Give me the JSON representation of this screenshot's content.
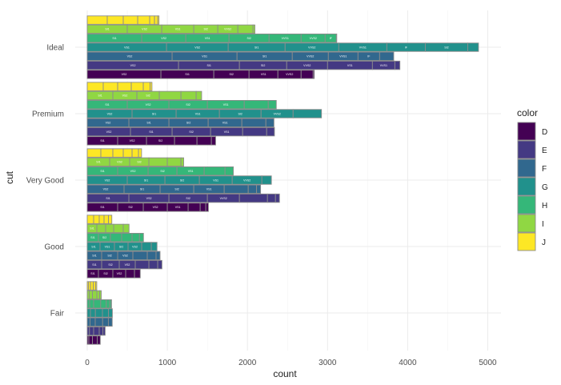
{
  "chart_data": {
    "type": "bar",
    "orientation": "horizontal",
    "position": "dodge",
    "xlabel": "count",
    "ylabel": "cut",
    "xlim": [
      0,
      5150
    ],
    "x_ticks": [
      0,
      1000,
      2000,
      3000,
      4000,
      5000
    ],
    "grid": true,
    "categories": [
      "Fair",
      "Good",
      "Very Good",
      "Premium",
      "Ideal"
    ],
    "legend": {
      "title": "color",
      "placement": "right",
      "entries": [
        "D",
        "E",
        "F",
        "G",
        "H",
        "I",
        "J"
      ],
      "colors": [
        "#440154",
        "#443983",
        "#31688e",
        "#21918c",
        "#35b779",
        "#90d743",
        "#fde725"
      ]
    },
    "series": [
      {
        "name": "D",
        "values": [
          163,
          662,
          1513,
          1603,
          2834
        ]
      },
      {
        "name": "E",
        "values": [
          224,
          933,
          2400,
          2337,
          3903
        ]
      },
      {
        "name": "F",
        "values": [
          312,
          909,
          2164,
          2331,
          3826
        ]
      },
      {
        "name": "G",
        "values": [
          314,
          871,
          2299,
          2924,
          4884
        ]
      },
      {
        "name": "H",
        "values": [
          303,
          702,
          1824,
          2360,
          3115
        ]
      },
      {
        "name": "I",
        "values": [
          175,
          522,
          1204,
          1428,
          2093
        ]
      },
      {
        "name": "J",
        "values": [
          119,
          307,
          678,
          808,
          896
        ]
      }
    ],
    "segments": [
      [
        [
          20,
          45,
          60,
          38
        ],
        [
          28,
          52,
          70,
          46,
          28
        ],
        [
          35,
          65,
          92,
          72,
          48
        ],
        [
          40,
          62,
          88,
          76,
          48
        ],
        [
          30,
          50,
          88,
          70,
          42,
          22
        ],
        [
          25,
          40,
          55,
          35,
          20
        ],
        [
          16,
          25,
          35,
          28,
          15
        ]
      ],
      [
        [
          {
            "v": 140,
            "t": "SI1"
          },
          {
            "v": 180,
            "t": "SI2"
          },
          {
            "v": 160,
            "t": "VS2"
          },
          110,
          72
        ],
        [
          {
            "v": 180,
            "t": "SI1"
          },
          {
            "v": 220,
            "t": "SI2"
          },
          {
            "v": 200,
            "t": "VS2"
          },
          170,
          110,
          53
        ],
        [
          {
            "v": 180,
            "t": "SI1"
          },
          {
            "v": 200,
            "t": "SI2"
          },
          {
            "v": 190,
            "t": "VS2"
          },
          180,
          109,
          50
        ],
        [
          {
            "v": 160,
            "t": "SI1"
          },
          {
            "v": 180,
            "t": "VS1"
          },
          {
            "v": 170,
            "t": "SI2"
          },
          {
            "v": 170,
            "t": "VS2"
          },
          120,
          71
        ],
        [
          {
            "v": 140,
            "t": "SI1"
          },
          {
            "v": 150,
            "t": "SI2"
          },
          140,
          130,
          92,
          50
        ],
        [
          {
            "v": 120,
            "t": "SI1"
          },
          110,
          100,
          120,
          72
        ],
        [
          80,
          70,
          60,
          55,
          42
        ]
      ],
      [
        [
          {
            "v": 380,
            "t": "SI1"
          },
          {
            "v": 320,
            "t": "SI2"
          },
          {
            "v": 300,
            "t": "VS2"
          },
          {
            "v": 260,
            "t": "VS1"
          },
          150,
          70,
          33
        ],
        [
          {
            "v": 520,
            "t": "SI1"
          },
          {
            "v": 500,
            "t": "VS2"
          },
          {
            "v": 480,
            "t": "SI2"
          },
          {
            "v": 400,
            "t": "VVS2"
          },
          350,
          100,
          50
        ],
        [
          {
            "v": 460,
            "t": "VS2"
          },
          {
            "v": 450,
            "t": "SI1"
          },
          {
            "v": 420,
            "t": "SI2"
          },
          {
            "v": 380,
            "t": "VS1"
          },
          300,
          104,
          50
        ],
        [
          {
            "v": 500,
            "t": "VS2"
          },
          {
            "v": 470,
            "t": "SI1"
          },
          {
            "v": 430,
            "t": "SI2"
          },
          {
            "v": 410,
            "t": "VS1"
          },
          {
            "v": 370,
            "t": "VVS2"
          },
          119
        ],
        [
          {
            "v": 380,
            "t": "SI1"
          },
          {
            "v": 380,
            "t": "VS2"
          },
          {
            "v": 360,
            "t": "SI2"
          },
          {
            "v": 340,
            "t": "VS1"
          },
          260,
          104
        ],
        [
          {
            "v": 280,
            "t": "SI1"
          },
          {
            "v": 250,
            "t": "VS2"
          },
          {
            "v": 240,
            "t": "SI2"
          },
          230,
          170,
          34
        ],
        [
          170,
          150,
          130,
          110,
          80,
          38
        ]
      ],
      [
        [
          {
            "v": 380,
            "t": "SI1"
          },
          {
            "v": 360,
            "t": "VS2"
          },
          {
            "v": 350,
            "t": "SI2"
          },
          280,
          180,
          53
        ],
        [
          {
            "v": 540,
            "t": "VS2"
          },
          {
            "v": 520,
            "t": "SI1"
          },
          {
            "v": 480,
            "t": "SI2"
          },
          {
            "v": 400,
            "t": "VS1"
          },
          300,
          97
        ],
        [
          {
            "v": 520,
            "t": "VS2"
          },
          {
            "v": 500,
            "t": "SI1"
          },
          {
            "v": 490,
            "t": "SI2"
          },
          {
            "v": 420,
            "t": "VS1"
          },
          300,
          101
        ],
        [
          {
            "v": 560,
            "t": "VS2"
          },
          {
            "v": 550,
            "t": "SI1"
          },
          {
            "v": 540,
            "t": "VS1"
          },
          {
            "v": 520,
            "t": "SI2"
          },
          {
            "v": 400,
            "t": "VVS2"
          },
          354
        ],
        [
          {
            "v": 500,
            "t": "SI1"
          },
          {
            "v": 520,
            "t": "VS2"
          },
          {
            "v": 480,
            "t": "SI2"
          },
          {
            "v": 460,
            "t": "VS1"
          },
          300,
          100
        ],
        [
          {
            "v": 320,
            "t": "SI1"
          },
          {
            "v": 300,
            "t": "VS2"
          },
          {
            "v": 280,
            "t": "SI2"
          },
          270,
          190,
          68
        ],
        [
          200,
          180,
          170,
          150,
          85,
          23
        ]
      ],
      [
        [
          {
            "v": 920,
            "t": "VS2"
          },
          {
            "v": 660,
            "t": "SI1"
          },
          {
            "v": 440,
            "t": "SI2"
          },
          {
            "v": 360,
            "t": "VS1"
          },
          {
            "v": 290,
            "t": "VVS2"
          },
          150,
          14
        ],
        [
          {
            "v": 1140,
            "t": "VS2"
          },
          {
            "v": 760,
            "t": "SI1"
          },
          {
            "v": 590,
            "t": "SI2"
          },
          {
            "v": 510,
            "t": "VVS2"
          },
          {
            "v": 560,
            "t": "VS1"
          },
          {
            "v": 280,
            "t": "VVS1"
          },
          63
        ],
        [
          {
            "v": 1060,
            "t": "VS2"
          },
          {
            "v": 810,
            "t": "VS1"
          },
          {
            "v": 690,
            "t": "SI1"
          },
          {
            "v": 450,
            "t": "VVS2"
          },
          {
            "v": 370,
            "t": "VVS1"
          },
          {
            "v": 270,
            "t": "IF"
          },
          176
        ],
        [
          {
            "v": 990,
            "t": "VS1"
          },
          {
            "v": 770,
            "t": "VS2"
          },
          {
            "v": 710,
            "t": "SI1"
          },
          {
            "v": 670,
            "t": "VVS2"
          },
          {
            "v": 600,
            "t": "VVS1"
          },
          {
            "v": 480,
            "t": "IF"
          },
          {
            "v": 530,
            "t": "SI2"
          },
          134
        ],
        [
          {
            "v": 680,
            "t": "SI1"
          },
          {
            "v": 550,
            "t": "VS2"
          },
          {
            "v": 540,
            "t": "VS1"
          },
          {
            "v": 500,
            "t": "SI2"
          },
          {
            "v": 400,
            "t": "VVS1"
          },
          {
            "v": 300,
            "t": "VVS2"
          },
          {
            "v": 140,
            "t": "IF"
          },
          5
        ],
        [
          {
            "v": 500,
            "t": "SI1"
          },
          {
            "v": 430,
            "t": "VS2"
          },
          {
            "v": 400,
            "t": "VS1"
          },
          {
            "v": 300,
            "t": "SI2"
          },
          {
            "v": 250,
            "t": "VVS2"
          },
          190,
          23
        ],
        [
          250,
          200,
          180,
          150,
          60,
          40,
          16
        ]
      ]
    ]
  }
}
